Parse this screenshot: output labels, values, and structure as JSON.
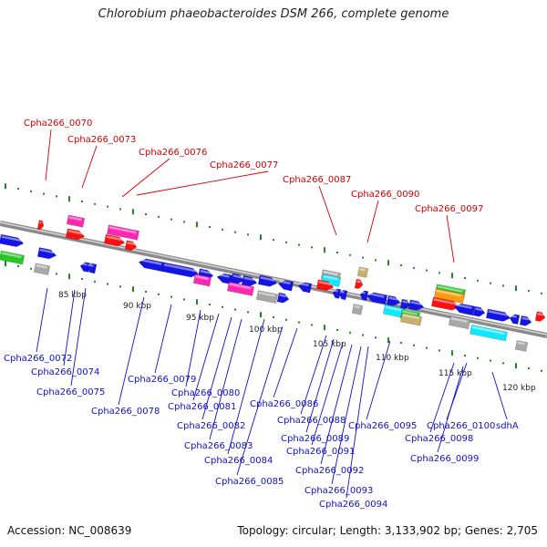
{
  "title": "Chlorobium phaeobacteroides DSM 266, complete genome",
  "footer": {
    "accession": "Accession: NC_008639",
    "topology": "Topology: circular; Length: 3,133,902 bp; Genes: 2,705"
  },
  "colors": {
    "backbone": "#8a8a8a",
    "tick_green": "#1f8a1f",
    "top_label": "#d40000",
    "bottom_label": "#1010c8",
    "feature_blue": "#1414e6",
    "feature_red": "#ff1010",
    "feature_magenta": "#ff28b4",
    "feature_green": "#28c828",
    "feature_gray": "#a8a8a8",
    "feature_cyan": "#10e8ff",
    "feature_orange": "#ff9a10",
    "feature_olive": "#c8b070"
  },
  "kbp_labels": [
    "85 kbp",
    "90 kbp",
    "95 kbp",
    "100 kbp",
    "105 kbp",
    "110 kbp",
    "115 kbp",
    "120 kbp"
  ],
  "top_labels": [
    "Cpha266_0070",
    "Cpha266_0073",
    "Cpha266_0076",
    "Cpha266_0077",
    "Cpha266_0087",
    "Cpha266_0090",
    "Cpha266_0097"
  ],
  "bottom_labels": [
    "Cpha266_0072",
    "Cpha266_0074",
    "Cpha266_0075",
    "Cpha266_0078",
    "Cpha266_0079",
    "Cpha266_0080",
    "Cpha266_0081",
    "Cpha266_0082",
    "Cpha266_0083",
    "Cpha266_0084",
    "Cpha266_0085",
    "Cpha266_0086",
    "Cpha266_0088",
    "Cpha266_0089",
    "Cpha266_0091",
    "Cpha266_0092",
    "Cpha266_0093",
    "Cpha266_0094",
    "Cpha266_0095",
    "Cpha266_0098",
    "Cpha266_0099",
    "Cpha266_0100",
    "sdhA"
  ]
}
